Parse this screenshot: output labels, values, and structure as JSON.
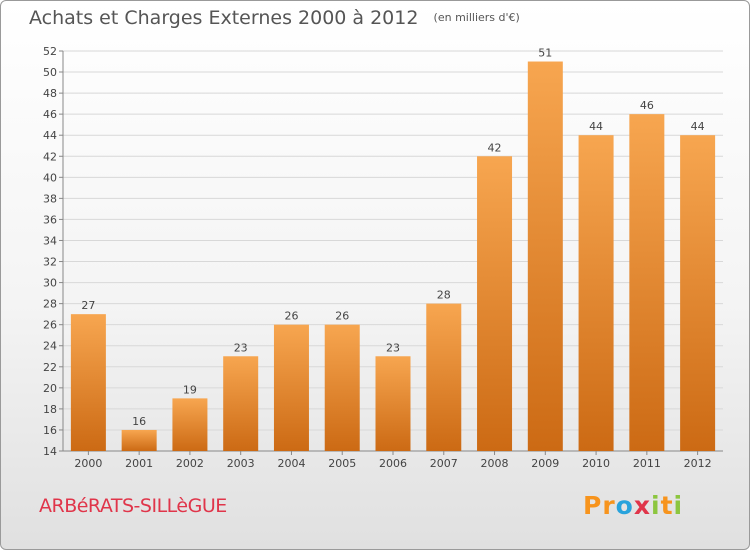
{
  "title": {
    "main": "Achats et Charges Externes 2000 à 2012",
    "unit": "(en milliers d'€)"
  },
  "commune": "ARBéRATS-SILLèGUE",
  "brand": {
    "text": "Proxiti",
    "letters": [
      {
        "ch": "P",
        "color": "#f7941d"
      },
      {
        "ch": "r",
        "color": "#f7941d"
      },
      {
        "ch": "o",
        "color": "#29a3dc"
      },
      {
        "ch": "x",
        "color": "#e0354a"
      },
      {
        "ch": "i",
        "color": "#8cc63f"
      },
      {
        "ch": "t",
        "color": "#f7941d"
      },
      {
        "ch": "i",
        "color": "#8cc63f"
      }
    ]
  },
  "colors": {
    "bar_light": "#f7a650",
    "bar_dark": "#cc6a14",
    "grid": "#d8d8d8",
    "axis": "#888888"
  },
  "chart_data": {
    "type": "bar",
    "categories": [
      "2000",
      "2001",
      "2002",
      "2003",
      "2004",
      "2005",
      "2006",
      "2007",
      "2008",
      "2009",
      "2010",
      "2011",
      "2012"
    ],
    "values": [
      27,
      16,
      19,
      23,
      26,
      26,
      23,
      28,
      42,
      51,
      44,
      46,
      44
    ],
    "ylim": [
      14,
      52
    ],
    "yticks": [
      14,
      16,
      18,
      20,
      22,
      24,
      26,
      28,
      30,
      32,
      34,
      36,
      38,
      40,
      42,
      44,
      46,
      48,
      50,
      52
    ],
    "grid": true,
    "legend": "none"
  }
}
